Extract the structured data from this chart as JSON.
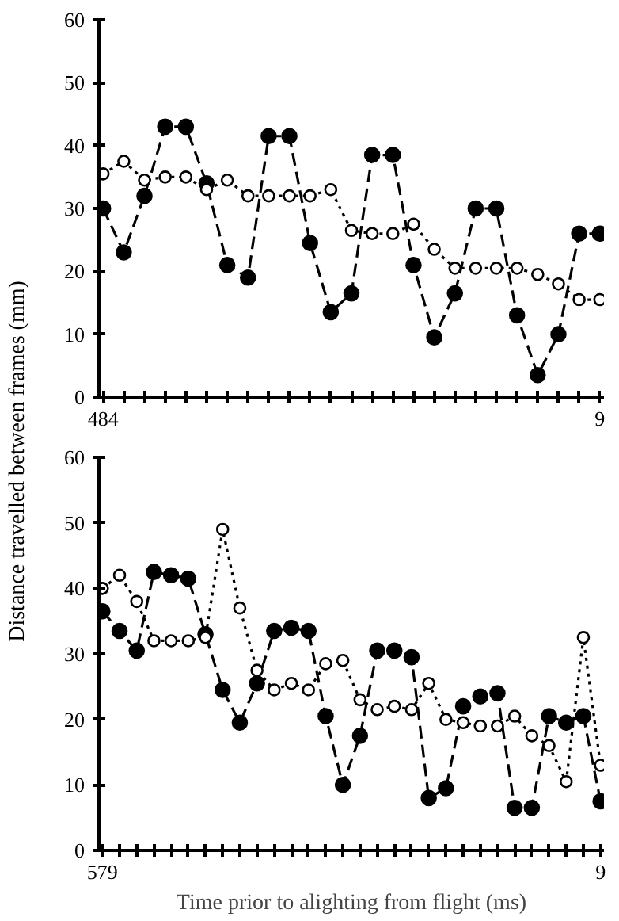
{
  "chart_data": [
    {
      "type": "line",
      "ylabel": "Distance travelled between frames (mm)",
      "categories": [
        "484",
        null,
        null,
        null,
        null,
        null,
        null,
        null,
        null,
        null,
        null,
        null,
        null,
        null,
        null,
        null,
        null,
        null,
        null,
        null,
        null,
        null,
        null,
        null,
        "9"
      ],
      "ylim": [
        0,
        60
      ],
      "yticks": [
        0,
        10,
        20,
        30,
        40,
        50,
        60
      ],
      "grid": false,
      "marker": "circle",
      "series": [
        {
          "color": "#000000",
          "line_style": "dashed",
          "values": [
            30,
            23,
            32,
            43,
            43,
            34,
            21,
            19,
            41.5,
            41.5,
            24.5,
            13.5,
            16.5,
            38.5,
            38.5,
            21,
            9.5,
            16.5,
            30,
            30,
            13,
            3.5,
            10,
            26,
            26
          ]
        },
        {
          "color": "#000000",
          "line_style": "dotted",
          "values": [
            35.5,
            37.5,
            34.5,
            35,
            35,
            33,
            34.5,
            32,
            32,
            32,
            32,
            33,
            26.5,
            26,
            26,
            27.5,
            23.5,
            20.5,
            20.5,
            20.5,
            20.5,
            19.5,
            18,
            15.5,
            15.5
          ]
        }
      ]
    },
    {
      "type": "line",
      "xlabel": "Time prior to alighting from flight (ms)",
      "categories": [
        "579",
        null,
        null,
        null,
        null,
        null,
        null,
        null,
        null,
        null,
        null,
        null,
        null,
        null,
        null,
        null,
        null,
        null,
        null,
        null,
        null,
        null,
        null,
        null,
        null,
        null,
        null,
        null,
        null,
        "9"
      ],
      "ylim": [
        0,
        60
      ],
      "yticks": [
        0,
        10,
        20,
        30,
        40,
        50,
        60
      ],
      "grid": false,
      "marker": "circle",
      "series": [
        {
          "color": "#000000",
          "line_style": "dashed",
          "values": [
            36.5,
            33.5,
            30.5,
            42.5,
            42,
            41.5,
            33,
            24.5,
            19.5,
            25.5,
            33.5,
            34,
            33.5,
            20.5,
            10,
            17.5,
            30.5,
            30.5,
            29.5,
            8,
            9.5,
            22,
            23.5,
            24,
            6.5,
            6.5,
            20.5,
            19.5,
            20.5,
            7.5
          ]
        },
        {
          "color": "#000000",
          "line_style": "dotted",
          "values": [
            40,
            42,
            38,
            32,
            32,
            32,
            32.5,
            49,
            37,
            27.5,
            24.5,
            25.5,
            24.5,
            28.5,
            29,
            23,
            21.5,
            22,
            21.5,
            25.5,
            20,
            19.5,
            19,
            19,
            20.5,
            17.5,
            16,
            10.5,
            32.5,
            13
          ]
        }
      ]
    }
  ]
}
